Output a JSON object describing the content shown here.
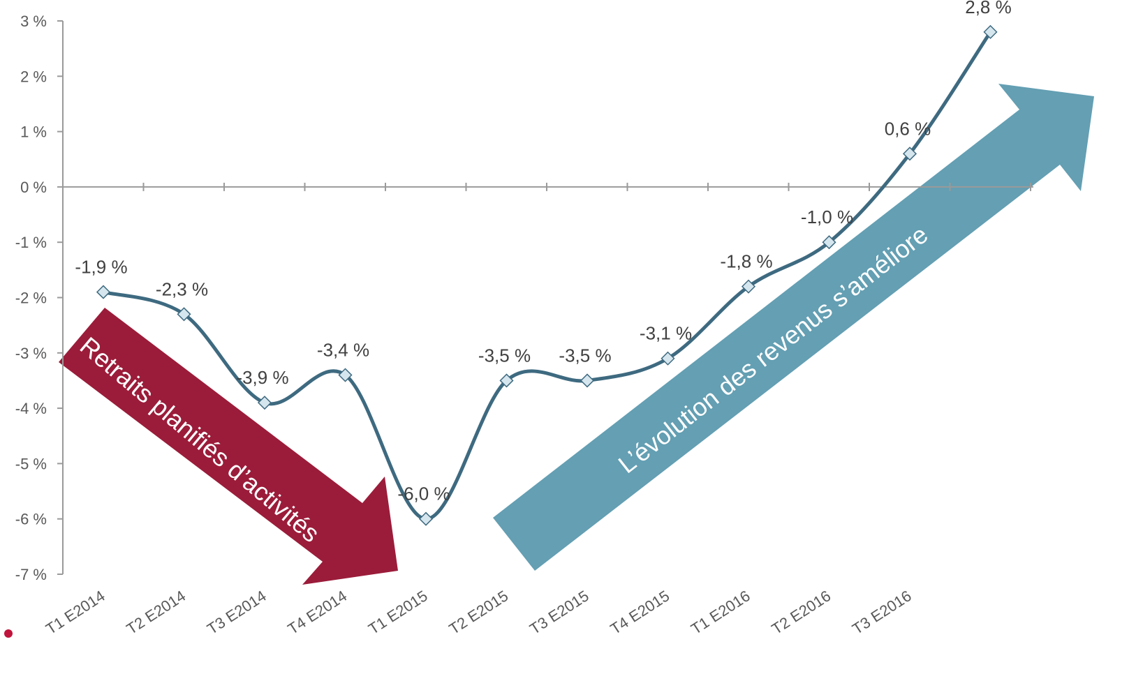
{
  "chart_data": {
    "type": "line",
    "categories": [
      "T1 E2014",
      "T2 E2014",
      "T3 E2014",
      "T4 E2014",
      "T1 E2015",
      "T2 E2015",
      "T3 E2015",
      "T4 E2015",
      "T1 E2016",
      "T2 E2016",
      "T3 E2016",
      ""
    ],
    "series": [
      {
        "values": [
          -1.9,
          -2.3,
          -3.9,
          -3.4,
          -6.0,
          -3.5,
          -3.5,
          -3.1,
          -1.8,
          -1.0,
          0.6,
          2.8
        ],
        "labels": [
          "-1,9 %",
          "-2,3 %",
          "-3,9 %",
          "-3,4 %",
          "-6,0 %",
          "-3,5 %",
          "-3,5 %",
          "-3,1 %",
          "-1,8 %",
          "-1,0 %",
          "0,6 %",
          "2,8 %"
        ]
      }
    ],
    "y_ticks": [
      3,
      2,
      1,
      0,
      -1,
      -2,
      -3,
      -4,
      -5,
      -6,
      -7
    ],
    "y_tick_labels": [
      "3 %",
      "2 %",
      "1 %",
      "0 %",
      "-1 %",
      "-2 %",
      "-3 %",
      "-4 %",
      "-5 %",
      "-6 %",
      "-7 %"
    ],
    "ylim": [
      -7,
      3
    ],
    "grid": false,
    "title": "",
    "xlabel": "",
    "ylabel": "",
    "colors": {
      "line": "#3e6a80",
      "marker_fill": "#d6e6ee",
      "axis": "#9a9a9a",
      "arrow_down": "#9b1c3a",
      "arrow_up": "#649fb3"
    }
  },
  "annotations": {
    "down_arrow_text": "Retraits planifiés d’activités",
    "up_arrow_text": "L’évolution des revenus s’améliore"
  }
}
